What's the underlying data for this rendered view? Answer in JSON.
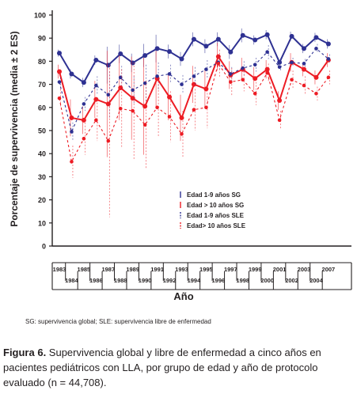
{
  "chart_data": {
    "type": "line",
    "title": "",
    "xlabel": "Año",
    "ylabel": "Porcentaje de supervivencia (media ± 2 ES)",
    "ylim": [
      0,
      100
    ],
    "yticks": [
      0,
      10,
      20,
      30,
      40,
      50,
      60,
      70,
      80,
      90,
      100
    ],
    "x": [
      1983,
      1984,
      1985,
      1986,
      1987,
      1988,
      1989,
      1990,
      1991,
      1992,
      1993,
      1994,
      1995,
      1996,
      1997,
      1998,
      1999,
      2000,
      2001,
      2002,
      2003,
      2004,
      2007
    ],
    "xtick_labels": [
      "1983",
      "1984",
      "1985",
      "1986",
      "1987",
      "1988",
      "1989",
      "1990",
      "1991",
      "1992",
      "1993",
      "1994",
      "1995",
      "1996",
      "1997",
      "1998",
      "1999",
      "2000",
      "2001",
      "2002",
      "2003",
      "2004",
      "2007"
    ],
    "grid": false,
    "legend_position": "lower-right",
    "series": [
      {
        "name": "Edad 1-9 años SG",
        "color": "#2e3192",
        "style": "solid",
        "values": [
          83.5,
          74.5,
          70.8,
          80.5,
          78.3,
          83.2,
          79.3,
          82.5,
          85.5,
          84.2,
          81.0,
          89.5,
          86.5,
          89.5,
          84.0,
          91.2,
          89.2,
          91.5,
          79.5,
          90.8,
          85.5,
          90.3,
          87.5
        ],
        "ci_halfwidth": [
          1.5,
          2,
          2,
          2,
          8,
          4,
          4,
          5,
          6,
          3,
          3,
          3,
          3,
          3,
          3,
          3,
          2,
          2,
          2,
          2,
          2,
          2,
          2
        ]
      },
      {
        "name": "Edad > 10 años SG",
        "color": "#ed1c24",
        "style": "solid",
        "values": [
          75.5,
          55.5,
          54.5,
          63.5,
          61.5,
          68.5,
          64.0,
          60.5,
          72.5,
          64.5,
          55.5,
          70.0,
          68.0,
          82.0,
          74.0,
          76.5,
          72.5,
          76.5,
          63.0,
          79.5,
          76.5,
          73.0,
          80.5
        ],
        "ci_halfwidth": [
          3,
          8,
          6,
          8,
          23,
          14,
          18,
          21,
          12,
          10,
          10,
          8,
          8,
          6,
          6,
          5,
          5,
          4,
          4,
          4,
          3,
          3,
          3
        ]
      },
      {
        "name": "Edad 1-9 años SLE",
        "color": "#2e3192",
        "style": "dashed",
        "values": [
          71.0,
          49.5,
          61.5,
          69.5,
          65.5,
          73.0,
          67.5,
          70.5,
          73.5,
          74.5,
          70.0,
          73.5,
          76.5,
          79.5,
          74.5,
          77.0,
          78.5,
          84.0,
          77.5,
          79.5,
          79.0,
          85.5,
          81.0
        ],
        "ci_halfwidth": [
          2,
          4,
          3,
          4,
          10,
          5,
          6,
          8,
          6,
          4,
          4,
          4,
          4,
          3,
          3,
          3,
          3,
          3,
          2,
          2,
          2,
          2,
          2
        ]
      },
      {
        "name": "Edad> 10 años SLE",
        "color": "#ed1c24",
        "style": "dashed",
        "values": [
          64.0,
          36.5,
          46.5,
          54.5,
          45.5,
          59.5,
          58.5,
          52.5,
          60.0,
          56.0,
          48.5,
          59.0,
          60.0,
          79.0,
          71.0,
          72.0,
          66.0,
          75.0,
          54.5,
          72.0,
          69.5,
          66.0,
          73.0
        ],
        "ci_halfwidth": [
          4,
          7,
          7,
          9,
          33,
          17,
          21,
          19,
          13,
          11,
          10,
          9,
          9,
          6,
          6,
          5,
          5,
          4,
          4,
          4,
          4,
          3,
          3
        ]
      }
    ]
  },
  "footnote": "SG: supervivencia global; SLE: supervivencia libre de enfermedad",
  "caption": {
    "label": "Figura 6.",
    "text": " Supervivencia global y libre de enfermedad a cinco años en pacientes pediátricos con LLA, por grupo de edad y año de protocolo evaluado (n = 44,708)."
  }
}
